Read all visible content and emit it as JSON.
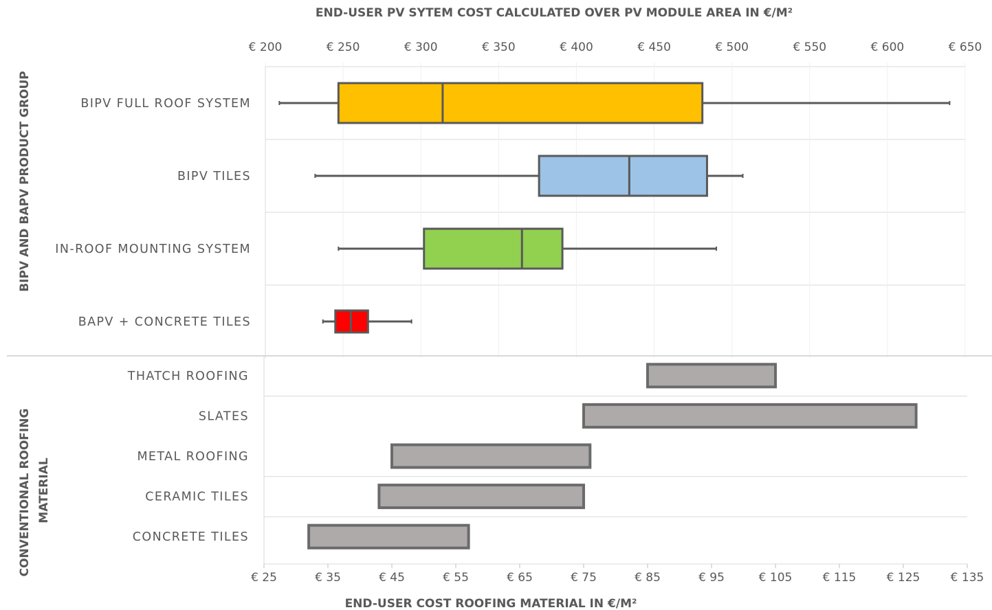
{
  "chart_data": [
    {
      "type": "boxplot",
      "group_label": "BIPV AND BAPV PRODUCT GROUP",
      "xlabel": "END-USER PV SYTEM COST CALCULATED OVER PV MODULE AREA IN €/M²",
      "xlim": [
        200,
        650
      ],
      "x_ticks": [
        "€ 200",
        "€ 250",
        "€ 300",
        "€ 350",
        "€ 400",
        "€ 450",
        "€ 500",
        "€ 550",
        "€ 600",
        "€ 650"
      ],
      "x_tick_values": [
        200,
        250,
        300,
        350,
        400,
        450,
        500,
        550,
        600,
        650
      ],
      "categories": [
        "BIPV FULL ROOF SYSTEM",
        "BIPV TILES",
        "IN-ROOF MOUNTING SYSTEM",
        "BAPV + CONCRETE TILES"
      ],
      "boxes": [
        {
          "min": 209,
          "q1": 247,
          "median": 314,
          "q3": 481,
          "max": 640,
          "color": "#ffc000"
        },
        {
          "min": 232,
          "q1": 376,
          "median": 434,
          "q3": 484,
          "max": 507,
          "color": "#9dc3e6"
        },
        {
          "min": 247,
          "q1": 302,
          "median": 365,
          "q3": 391,
          "max": 490,
          "color": "#92d050"
        },
        {
          "min": 237,
          "q1": 245,
          "median": 255,
          "q3": 266,
          "max": 294,
          "color": "#ff0000"
        }
      ]
    },
    {
      "type": "range-bar",
      "group_label": "CONVENTIONAL ROOFING MATERIAL",
      "xlabel": "END-USER COST ROOFING MATERIAL IN €/M²",
      "xlim": [
        25,
        135
      ],
      "x_ticks": [
        "€ 25",
        "€ 35",
        "€ 45",
        "€ 55",
        "€ 65",
        "€ 75",
        "€ 85",
        "€ 95",
        "€ 105",
        "€ 115",
        "€ 125",
        "€ 135"
      ],
      "x_tick_values": [
        25,
        35,
        45,
        55,
        65,
        75,
        85,
        95,
        105,
        115,
        125,
        135
      ],
      "categories": [
        "THATCH ROOFING",
        "SLATES",
        "METAL ROOFING",
        "CERAMIC TILES",
        "CONCRETE TILES"
      ],
      "ranges": [
        [
          85,
          105
        ],
        [
          75,
          127
        ],
        [
          45,
          76
        ],
        [
          43,
          75
        ],
        [
          32,
          57
        ]
      ],
      "color": "#aeaaaa"
    }
  ]
}
